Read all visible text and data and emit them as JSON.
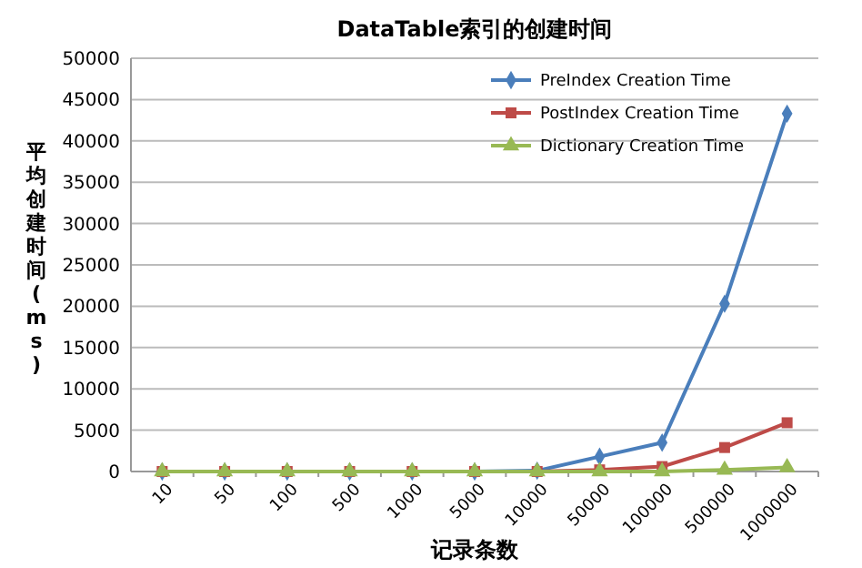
{
  "chart_data": {
    "type": "line",
    "title": "DataTable索引的创建时间",
    "xlabel": "记录条数",
    "ylabel": "平均创建时间(ms)",
    "categories": [
      "10",
      "50",
      "100",
      "500",
      "1000",
      "5000",
      "10000",
      "50000",
      "100000",
      "500000",
      "1000000"
    ],
    "series": [
      {
        "name": "PreIndex Creation Time",
        "color": "#4a7ebb",
        "marker": "diamond",
        "values": [
          0,
          0,
          0,
          0,
          0,
          0,
          100,
          1800,
          3500,
          20300,
          43300
        ]
      },
      {
        "name": "PostIndex Creation Time",
        "color": "#be4b48",
        "marker": "square",
        "values": [
          0,
          0,
          0,
          0,
          0,
          0,
          0,
          200,
          600,
          2900,
          5900
        ]
      },
      {
        "name": "Dictionary Creation Time",
        "color": "#98b954",
        "marker": "triangle",
        "values": [
          0,
          0,
          0,
          0,
          0,
          0,
          0,
          0,
          0,
          200,
          500
        ]
      }
    ],
    "ylim": [
      0,
      50000
    ],
    "yticks": [
      0,
      5000,
      10000,
      15000,
      20000,
      25000,
      30000,
      35000,
      40000,
      45000,
      50000
    ],
    "grid": "y",
    "legend": "top right"
  }
}
